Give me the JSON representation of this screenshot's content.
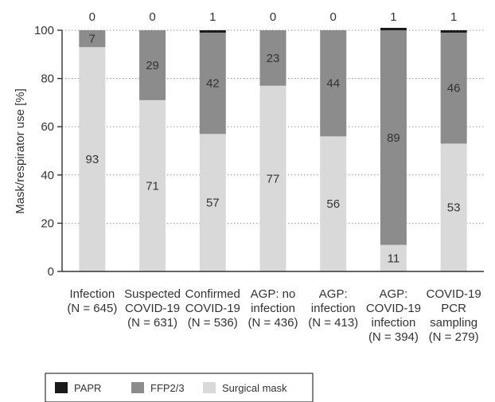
{
  "chart_data": {
    "type": "bar",
    "stacked": true,
    "ylabel": "Mask/respirator use [%]",
    "ylim": [
      0,
      100
    ],
    "yticks": [
      0,
      20,
      40,
      60,
      80,
      100
    ],
    "grid": true,
    "legend_position": "bottom-left",
    "categories": [
      [
        "Infection",
        "(N = 645)"
      ],
      [
        "Suspected",
        "COVID-19",
        "(N = 631)"
      ],
      [
        "Confirmed",
        "COVID-19",
        "(N = 536)"
      ],
      [
        "AGP: no",
        "infection",
        "(N = 436)"
      ],
      [
        "AGP:",
        "infection",
        "(N = 413)"
      ],
      [
        "AGP:",
        "COVID-19",
        "infection",
        "(N = 394)"
      ],
      [
        "COVID-19",
        "PCR",
        "sampling",
        "(N = 279)"
      ]
    ],
    "series": [
      {
        "name": "Surgical mask",
        "color": "#d9d9d9",
        "values": [
          93,
          71,
          57,
          77,
          56,
          11,
          53
        ]
      },
      {
        "name": "FFP2/3",
        "color": "#8c8c8c",
        "values": [
          7,
          29,
          42,
          23,
          44,
          89,
          46
        ]
      },
      {
        "name": "PAPR",
        "color": "#1a1a1a",
        "values": [
          0,
          0,
          1,
          0,
          0,
          1,
          1
        ]
      }
    ]
  }
}
